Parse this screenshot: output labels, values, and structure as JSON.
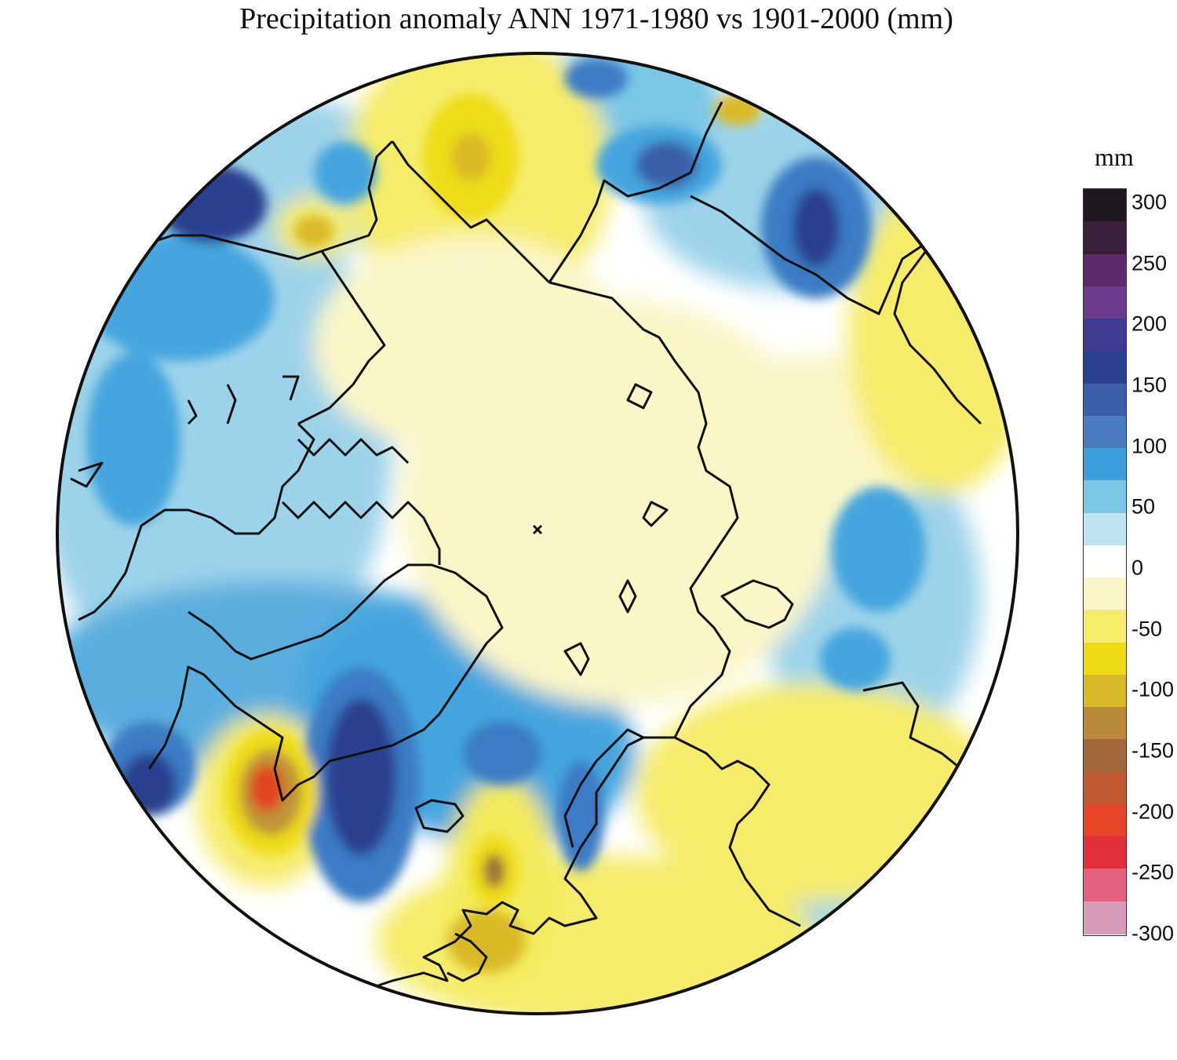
{
  "title": "Precipitation anomaly ANN 1971-1980 vs 1901-2000 (mm)",
  "colorbar": {
    "unit": "mm",
    "min": -300,
    "max": 300,
    "ticks": [
      "300",
      "250",
      "200",
      "150",
      "100",
      "50",
      "0",
      "-50",
      "-100",
      "-150",
      "-200",
      "-250",
      "-300"
    ],
    "colors": [
      "#201820",
      "#3a1f3a",
      "#5c2a6a",
      "#6a3a8c",
      "#3f3b91",
      "#2c3f8e",
      "#3a5ea8",
      "#4b7cc0",
      "#3aa0dd",
      "#7cc6e6",
      "#bfe3ef",
      "#ffffff",
      "#fbf6c8",
      "#f5ec6a",
      "#efdb14",
      "#d9b928",
      "#b98a3a",
      "#a3683c",
      "#c05a32",
      "#e54525",
      "#e0303a",
      "#e3627e",
      "#d79ab8"
    ]
  },
  "map": {
    "projection": "north polar stereographic",
    "palette": {
      "white": "#ffffff",
      "pale_yellow": "#fbf6c8",
      "yellow": "#f3ea5a",
      "deep_yellow": "#efdb14",
      "brown": "#c09438",
      "dark_brown": "#9a7238",
      "red": "#e04524",
      "pale_blue": "#d7eef3",
      "light_blue": "#9dd3ea",
      "blue": "#45a5de",
      "mid_blue": "#3a7cc4",
      "dark_blue": "#2c3f8e",
      "purple_navy": "#36367e",
      "coast": "#111111"
    }
  }
}
